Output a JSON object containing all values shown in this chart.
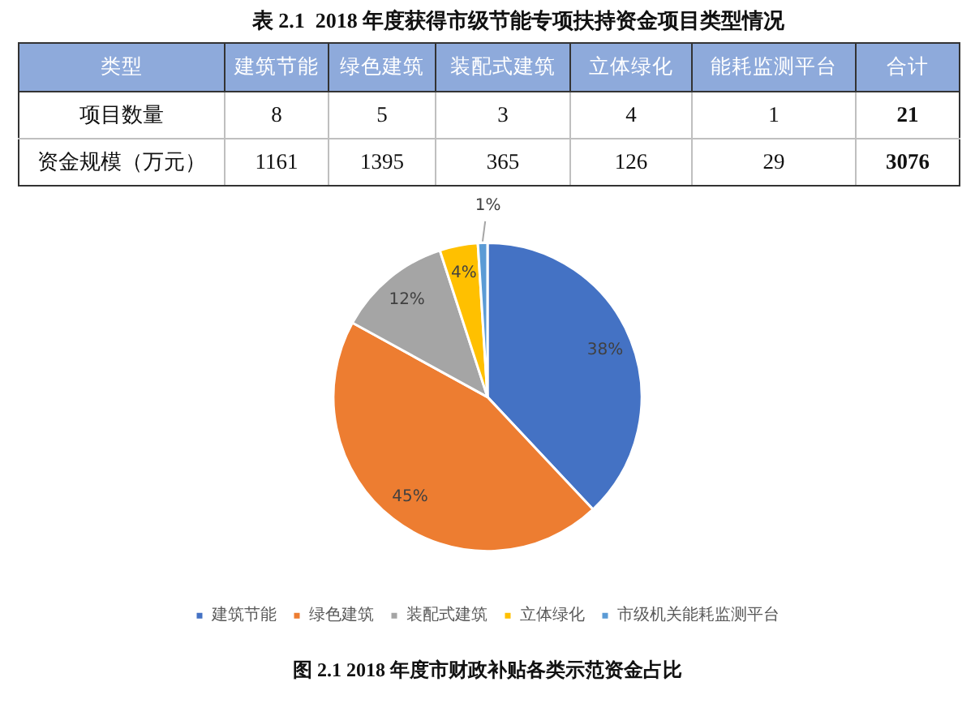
{
  "chart_data": [
    {
      "type": "other",
      "title": "表 2.1  2018 年度获得市级节能专项扶持资金项目类型情况",
      "xlabel": "类型",
      "categories": [
        "建筑节能",
        "绿色建筑",
        "装配式建筑",
        "立体绿化",
        "能耗监测平台",
        "合计"
      ],
      "series": [
        {
          "name": "项目数量",
          "values": [
            8,
            5,
            3,
            4,
            1,
            21
          ]
        },
        {
          "name": "资金规模（万元）",
          "values": [
            1161,
            1395,
            365,
            126,
            29,
            3076
          ]
        }
      ],
      "data_labels": true
    },
    {
      "type": "pie",
      "title": "图 2.1 2018 年度市财政补贴各类示范资金占比",
      "categories": [
        "建筑节能",
        "绿色建筑",
        "装配式建筑",
        "立体绿化",
        "市级机关能耗监测平台"
      ],
      "values": [
        38,
        45,
        12,
        4,
        1
      ],
      "colors": [
        "#4472c4",
        "#ed7d31",
        "#a5a5a5",
        "#ffc000",
        "#5b9bd5"
      ],
      "value_labels": [
        "38%",
        "45%",
        "12%",
        "4%",
        "1%"
      ],
      "legend": "bottom"
    }
  ]
}
